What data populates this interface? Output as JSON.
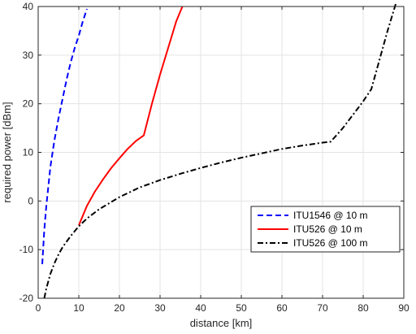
{
  "chart_data": {
    "type": "line",
    "title": "",
    "xlabel": "distance [km]",
    "ylabel": "required power [dBm]",
    "xlim": [
      0,
      90
    ],
    "ylim": [
      -20,
      40
    ],
    "xticks": [
      0,
      10,
      20,
      30,
      40,
      50,
      60,
      70,
      80,
      90
    ],
    "yticks": [
      -20,
      -10,
      0,
      10,
      20,
      30,
      40
    ],
    "grid": true,
    "legend_position": "lower-right",
    "series": [
      {
        "name": "ITU1546 @ 10 m",
        "color": "#0000ff",
        "style": "dashed",
        "x": [
          1,
          1.5,
          2,
          3,
          4,
          5,
          6,
          7,
          8,
          9,
          10,
          11,
          12
        ],
        "y": [
          -13,
          -6,
          -1,
          7,
          12.5,
          17,
          21,
          25,
          28.5,
          31.5,
          34,
          37,
          39.5
        ]
      },
      {
        "name": "ITU526 @ 10 m",
        "color": "#ff0000",
        "style": "solid",
        "x": [
          10,
          11,
          12,
          14,
          16,
          18,
          20,
          22,
          24,
          26,
          28,
          30,
          32,
          34,
          35.5
        ],
        "y": [
          -5,
          -3,
          -1,
          2,
          4.5,
          6.8,
          8.8,
          10.7,
          12.3,
          13.5,
          20,
          26,
          31.5,
          37,
          40
        ]
      },
      {
        "name": "ITU526 @ 100 m",
        "color": "#000000",
        "style": "dashdot",
        "x": [
          1.5,
          2,
          3,
          4,
          5,
          6,
          8,
          10,
          12,
          15,
          20,
          25,
          30,
          35,
          40,
          45,
          50,
          55,
          60,
          65,
          70,
          72,
          75,
          80,
          82,
          84,
          86,
          88
        ],
        "y": [
          -20,
          -18,
          -15,
          -12.8,
          -11,
          -9.5,
          -7.2,
          -5.2,
          -3.6,
          -1.7,
          0.8,
          2.8,
          4.3,
          5.6,
          6.8,
          7.9,
          8.9,
          9.8,
          10.7,
          11.4,
          12,
          12.2,
          15,
          20.5,
          23,
          29,
          35,
          40.5
        ]
      }
    ]
  }
}
